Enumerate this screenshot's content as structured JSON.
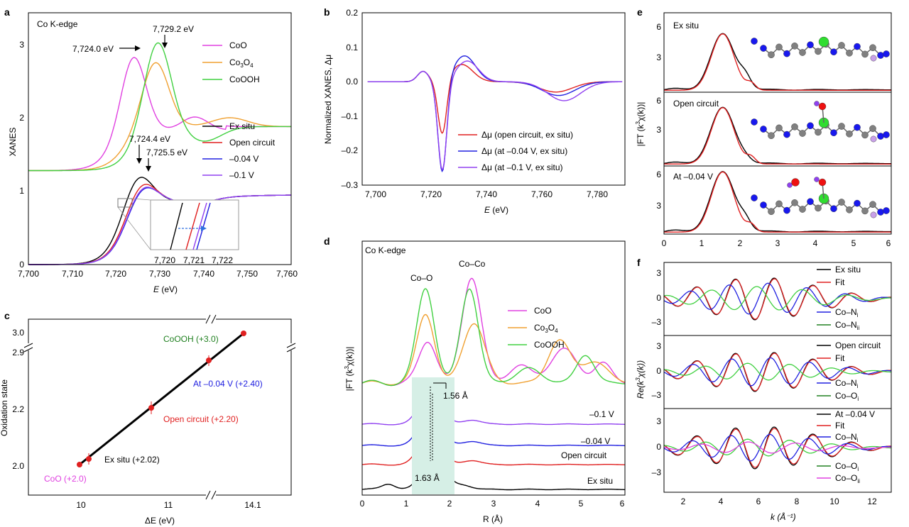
{
  "colors": {
    "pink": "#e040e0",
    "orange": "#f0a030",
    "green": "#40d040",
    "black": "#000000",
    "red": "#e02020",
    "blue": "#2020e0",
    "purple": "#9040f0",
    "dkgreen": "#208020",
    "axis": "#000000",
    "shade": "#d6efe6",
    "carbon": "#808080",
    "nitrogen": "#1818ee",
    "cobalt": "#30dd30",
    "oxygen": "#ee1111",
    "hydrogen": "#c8a0e8"
  },
  "chart_data": [
    {
      "panel": "a",
      "type": "line",
      "label": "Co K-edge",
      "xlabel": "E (eV)",
      "ylabel": "XANES",
      "xlim": [
        7700,
        7760
      ],
      "ylim": [
        0,
        3.3
      ],
      "xticks": [
        "7,700",
        "7,710",
        "7,720",
        "7,730",
        "7,740",
        "7,750",
        "7,760"
      ],
      "yticks": [
        "0",
        "1",
        "2",
        "3"
      ],
      "series": [
        {
          "name": "CoO",
          "color": "pink"
        },
        {
          "name": "Co3O4",
          "color": "orange"
        },
        {
          "name": "CoOOH",
          "color": "green"
        },
        {
          "name": "Ex situ",
          "color": "black"
        },
        {
          "name": "Open circuit",
          "color": "red"
        },
        {
          "name": "–0.04 V",
          "color": "blue"
        },
        {
          "name": "–0.1 V",
          "color": "purple"
        }
      ],
      "annotations": [
        "7,724.0 eV",
        "7,729.2 eV",
        "7,724.4 eV",
        "7,725.5 eV"
      ],
      "inset_ticks": [
        "7,720",
        "7,721",
        "7,722"
      ]
    },
    {
      "panel": "b",
      "type": "line",
      "xlabel": "E (eV)",
      "ylabel": "Normalized XANES, Δμ",
      "xlim": [
        7695,
        7790
      ],
      "ylim": [
        -0.3,
        0.2
      ],
      "xticks": [
        "7,700",
        "7,720",
        "7,740",
        "7,760",
        "7,780"
      ],
      "yticks": [
        "0.2",
        "0.1",
        "0.0",
        "–0.1",
        "–0.2",
        "–0.3"
      ],
      "series": [
        {
          "name": "Δμ (open circuit, ex situ)",
          "color": "red"
        },
        {
          "name": "Δμ (at –0.04 V, ex situ)",
          "color": "blue"
        },
        {
          "name": "Δμ (at –0.1 V, ex situ)",
          "color": "purple"
        }
      ]
    },
    {
      "panel": "c",
      "type": "scatter",
      "xlabel": "ΔE (eV)",
      "ylabel": "Oxidation state",
      "xticks": [
        "10",
        "11",
        "14.1"
      ],
      "yticks": [
        "2.0",
        "2.2",
        "2.9",
        "3.0"
      ],
      "points": [
        {
          "label": "CoO (+2.0)",
          "x": 10.0,
          "y": 2.0,
          "color": "pink"
        },
        {
          "label": "Ex situ (+2.02)",
          "x": 10.1,
          "y": 2.02,
          "color": "black"
        },
        {
          "label": "Open circuit (+2.20)",
          "x": 10.85,
          "y": 2.2,
          "color": "red"
        },
        {
          "label": "At –0.04 V (+2.40)",
          "x": 11.5,
          "y": 2.4,
          "color": "blue"
        },
        {
          "label": "CoOOH (+3.0)",
          "x": 14.1,
          "y": 3.0,
          "color": "dkgreen"
        }
      ]
    },
    {
      "panel": "d",
      "type": "line",
      "label": "Co K-edge",
      "xlabel": "R (Å)",
      "ylabel": "|FT (k³χ(k))|",
      "xlim": [
        0,
        6
      ],
      "xticks": [
        "0",
        "1",
        "2",
        "3",
        "4",
        "5",
        "6"
      ],
      "series": [
        {
          "name": "CoO",
          "color": "pink"
        },
        {
          "name": "Co3O4",
          "color": "orange"
        },
        {
          "name": "CoOOH",
          "color": "green"
        },
        {
          "name": "–0.1 V",
          "color": "purple"
        },
        {
          "name": "–0.04 V",
          "color": "blue"
        },
        {
          "name": "Open circuit",
          "color": "red"
        },
        {
          "name": "Ex situ",
          "color": "black"
        }
      ],
      "annotations": [
        "Co–O",
        "Co–Co",
        "1.56 Å",
        "1.63 Å"
      ]
    },
    {
      "panel": "e",
      "type": "line",
      "ylabel": "|FT (k³χ(k))|",
      "xlim": [
        0,
        6
      ],
      "xticks": [
        "0",
        "1",
        "2",
        "3",
        "4",
        "5",
        "6"
      ],
      "yticks": [
        "3",
        "6"
      ],
      "subpanels": [
        "Ex situ",
        "Open circuit",
        "At –0.04 V"
      ]
    },
    {
      "panel": "f",
      "type": "line",
      "xlabel": "k (Å⁻¹)",
      "ylabel": "Re(k³χ(k))",
      "xlim": [
        1,
        13
      ],
      "xticks": [
        "2",
        "4",
        "6",
        "8",
        "10",
        "12"
      ],
      "yticks": [
        "3",
        "0",
        "–3"
      ],
      "subpanels": [
        {
          "legend": [
            "Ex situ",
            "Fit",
            "Co–Ni",
            "Co–Nii"
          ]
        },
        {
          "legend": [
            "Open circuit",
            "Fit",
            "Co–Ni",
            "Co–Oi"
          ]
        },
        {
          "legend": [
            "At –0.04 V",
            "Fit",
            "Co–Ni",
            "Co–Oi",
            "Co–Oii"
          ]
        }
      ]
    }
  ],
  "labels": {
    "a": "a",
    "b": "b",
    "c": "c",
    "d": "d",
    "e": "e",
    "f": "f",
    "cok": "Co K-edge",
    "a_xlab": "E",
    "a_unit": " (eV)",
    "a_ylab": "XANES",
    "a_t1": "7,700",
    "a_t2": "7,710",
    "a_t3": "7,720",
    "a_t4": "7,730",
    "a_t5": "7,740",
    "a_t6": "7,750",
    "a_t7": "7,760",
    "a_y0": "0",
    "a_y1": "1",
    "a_y2": "2",
    "a_y3": "3",
    "a_ann1": "7,724.0 eV",
    "a_ann2": "7,729.2 eV",
    "a_ann3": "7,724.4 eV",
    "a_ann4": "7,725.5 eV",
    "a_i1": "7,720",
    "a_i2": "7,721",
    "a_i3": "7,722",
    "CoO": "CoO",
    "Co": "Co",
    "sub3": "3",
    "sub4": "4",
    "O": "O",
    "CoOOH": "CoOOH",
    "exsitu": "Ex situ",
    "open": "Open circuit",
    "m004": "–0.04 V",
    "m01": "–0.1 V",
    "b_y1": "0.2",
    "b_y2": "0.1",
    "b_y3": "0.0",
    "b_y4": "–0.1",
    "b_y5": "–0.2",
    "b_y6": "–0.3",
    "b_t1": "7,700",
    "b_t2": "7,720",
    "b_t3": "7,740",
    "b_t4": "7,760",
    "b_t5": "7,780",
    "b_ylab": "Normalized XANES, Δμ",
    "b_l1": "Δμ (open circuit, ex situ)",
    "b_l2": "Δμ (at –0.04 V, ex situ)",
    "b_l3": "Δμ (at –0.1 V, ex situ)",
    "c_y1": "3.0",
    "c_y2": "2.9",
    "c_y3": "2.2",
    "c_y4": "2.0",
    "c_x1": "10",
    "c_x2": "11",
    "c_x3": "14.1",
    "c_ylab": "Oxidation state",
    "c_xlab": "ΔE (eV)",
    "c_p1": "CoOOH (+3.0)",
    "c_p2": "At –0.04 V (+2.40)",
    "c_p3": "Open circuit (+2.20)",
    "c_p4": "Ex situ (+2.02)",
    "c_p5": "CoO (+2.0)",
    "d_coo": "Co–O",
    "d_coco": "Co–Co",
    "d_156": "1.56 Å",
    "d_163": "1.63 Å",
    "d_t0": "0",
    "d_t1": "1",
    "d_t2": "2",
    "d_t3": "3",
    "d_t4": "4",
    "d_t5": "5",
    "d_t6": "6",
    "d_xlab": "R (Å)",
    "ft": "|FT (k",
    "ft_sup": "3",
    "ft_end": "χ(k))|",
    "e_sub1": "Ex situ",
    "e_sub2": "Open circuit",
    "e_sub3": "At –0.04 V",
    "e_y3": "3",
    "e_y6": "6",
    "f_ylab": "Re(k",
    "f_ylab_end": "χ(k))",
    "f_xlab": "k (Å⁻¹)",
    "f_t2": "2",
    "f_t4": "4",
    "f_t6": "6",
    "f_t8": "8",
    "f_t10": "10",
    "f_t12": "12",
    "f_y3": "3",
    "f_y0": "0",
    "f_ym3": "–3",
    "fit": "Fit",
    "coni": "Co–N",
    "ci": "i",
    "cii": "ii",
    "cooi": "Co–O",
    "at004": "At –0.04 V"
  }
}
